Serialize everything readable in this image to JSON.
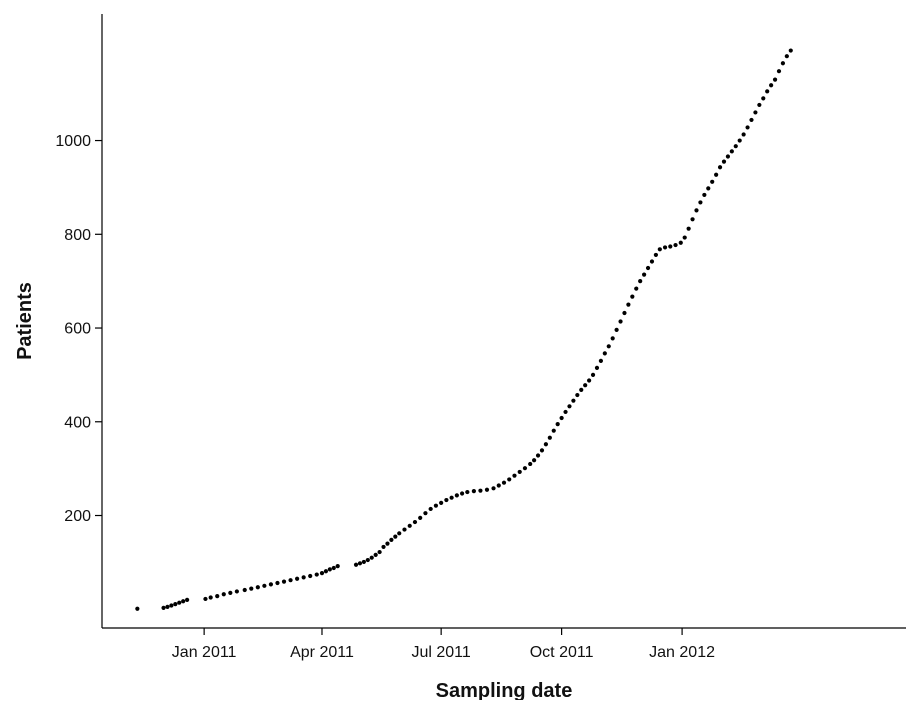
{
  "chart_data": {
    "type": "scatter",
    "xlabel": "Sampling date",
    "ylabel": "Patients",
    "x_is_date": true,
    "xlim": [
      "2010-10-15",
      "2012-06-20"
    ],
    "ylim": [
      -40,
      1270
    ],
    "x_ticks": [
      {
        "date": "2011-01-01",
        "label": "Jan 2011"
      },
      {
        "date": "2011-04-01",
        "label": "Apr 2011"
      },
      {
        "date": "2011-07-01",
        "label": "Jul 2011"
      },
      {
        "date": "2011-10-01",
        "label": "Oct 2011"
      },
      {
        "date": "2012-01-01",
        "label": "Jan 2012"
      }
    ],
    "y_ticks": [
      200,
      400,
      600,
      800,
      1000
    ],
    "grid": false,
    "legend": "none",
    "marker_color": "#000000",
    "series": [
      {
        "points": [
          [
            "2010-11-11",
            1
          ],
          [
            "2010-12-01",
            3
          ],
          [
            "2010-12-04",
            5
          ],
          [
            "2010-12-07",
            8
          ],
          [
            "2010-12-10",
            11
          ],
          [
            "2010-12-13",
            14
          ],
          [
            "2010-12-16",
            17
          ],
          [
            "2010-12-19",
            20
          ],
          [
            "2011-01-02",
            22
          ],
          [
            "2011-01-06",
            25
          ],
          [
            "2011-01-11",
            28
          ],
          [
            "2011-01-16",
            32
          ],
          [
            "2011-01-21",
            35
          ],
          [
            "2011-01-26",
            38
          ],
          [
            "2011-02-01",
            41
          ],
          [
            "2011-02-06",
            44
          ],
          [
            "2011-02-11",
            47
          ],
          [
            "2011-02-16",
            50
          ],
          [
            "2011-02-21",
            53
          ],
          [
            "2011-02-26",
            56
          ],
          [
            "2011-03-03",
            59
          ],
          [
            "2011-03-08",
            62
          ],
          [
            "2011-03-13",
            65
          ],
          [
            "2011-03-18",
            68
          ],
          [
            "2011-03-23",
            71
          ],
          [
            "2011-03-28",
            74
          ],
          [
            "2011-04-01",
            77
          ],
          [
            "2011-04-04",
            81
          ],
          [
            "2011-04-07",
            85
          ],
          [
            "2011-04-10",
            88
          ],
          [
            "2011-04-13",
            92
          ],
          [
            "2011-04-27",
            95
          ],
          [
            "2011-04-30",
            98
          ],
          [
            "2011-05-03",
            101
          ],
          [
            "2011-05-06",
            105
          ],
          [
            "2011-05-09",
            110
          ],
          [
            "2011-05-12",
            116
          ],
          [
            "2011-05-15",
            122
          ],
          [
            "2011-05-18",
            133
          ],
          [
            "2011-05-21",
            140
          ],
          [
            "2011-05-24",
            148
          ],
          [
            "2011-05-27",
            155
          ],
          [
            "2011-05-30",
            162
          ],
          [
            "2011-06-03",
            170
          ],
          [
            "2011-06-07",
            178
          ],
          [
            "2011-06-11",
            186
          ],
          [
            "2011-06-15",
            195
          ],
          [
            "2011-06-19",
            205
          ],
          [
            "2011-06-23",
            214
          ],
          [
            "2011-06-27",
            221
          ],
          [
            "2011-07-01",
            227
          ],
          [
            "2011-07-05",
            233
          ],
          [
            "2011-07-09",
            238
          ],
          [
            "2011-07-13",
            243
          ],
          [
            "2011-07-17",
            247
          ],
          [
            "2011-07-21",
            250
          ],
          [
            "2011-07-26",
            252
          ],
          [
            "2011-07-31",
            253
          ],
          [
            "2011-08-05",
            255
          ],
          [
            "2011-08-10",
            258
          ],
          [
            "2011-08-14",
            264
          ],
          [
            "2011-08-18",
            270
          ],
          [
            "2011-08-22",
            277
          ],
          [
            "2011-08-26",
            285
          ],
          [
            "2011-08-30",
            293
          ],
          [
            "2011-09-03",
            301
          ],
          [
            "2011-09-07",
            310
          ],
          [
            "2011-09-10",
            318
          ],
          [
            "2011-09-13",
            328
          ],
          [
            "2011-09-16",
            339
          ],
          [
            "2011-09-19",
            352
          ],
          [
            "2011-09-22",
            366
          ],
          [
            "2011-09-25",
            381
          ],
          [
            "2011-09-28",
            395
          ],
          [
            "2011-10-01",
            408
          ],
          [
            "2011-10-04",
            421
          ],
          [
            "2011-10-07",
            433
          ],
          [
            "2011-10-10",
            445
          ],
          [
            "2011-10-13",
            457
          ],
          [
            "2011-10-16",
            468
          ],
          [
            "2011-10-19",
            478
          ],
          [
            "2011-10-22",
            488
          ],
          [
            "2011-10-25",
            500
          ],
          [
            "2011-10-28",
            515
          ],
          [
            "2011-10-31",
            530
          ],
          [
            "2011-11-03",
            546
          ],
          [
            "2011-11-06",
            561
          ],
          [
            "2011-11-09",
            578
          ],
          [
            "2011-11-12",
            596
          ],
          [
            "2011-11-15",
            614
          ],
          [
            "2011-11-18",
            632
          ],
          [
            "2011-11-21",
            650
          ],
          [
            "2011-11-24",
            667
          ],
          [
            "2011-11-27",
            684
          ],
          [
            "2011-11-30",
            700
          ],
          [
            "2011-12-03",
            714
          ],
          [
            "2011-12-06",
            728
          ],
          [
            "2011-12-09",
            742
          ],
          [
            "2011-12-12",
            756
          ],
          [
            "2011-12-15",
            768
          ],
          [
            "2011-12-19",
            772
          ],
          [
            "2011-12-23",
            774
          ],
          [
            "2011-12-27",
            777
          ],
          [
            "2011-12-31",
            782
          ],
          [
            "2012-01-03",
            793
          ],
          [
            "2012-01-06",
            812
          ],
          [
            "2012-01-09",
            832
          ],
          [
            "2012-01-12",
            851
          ],
          [
            "2012-01-15",
            868
          ],
          [
            "2012-01-18",
            884
          ],
          [
            "2012-01-21",
            898
          ],
          [
            "2012-01-24",
            912
          ],
          [
            "2012-01-27",
            927
          ],
          [
            "2012-01-30",
            943
          ],
          [
            "2012-02-02",
            955
          ],
          [
            "2012-02-05",
            966
          ],
          [
            "2012-02-08",
            977
          ],
          [
            "2012-02-11",
            988
          ],
          [
            "2012-02-14",
            1000
          ],
          [
            "2012-02-17",
            1013
          ],
          [
            "2012-02-20",
            1028
          ],
          [
            "2012-02-23",
            1044
          ],
          [
            "2012-02-26",
            1060
          ],
          [
            "2012-02-29",
            1076
          ],
          [
            "2012-03-03",
            1090
          ],
          [
            "2012-03-06",
            1105
          ],
          [
            "2012-03-09",
            1118
          ],
          [
            "2012-03-12",
            1130
          ],
          [
            "2012-03-15",
            1148
          ],
          [
            "2012-03-18",
            1165
          ],
          [
            "2012-03-21",
            1180
          ],
          [
            "2012-03-24",
            1192
          ]
        ]
      }
    ]
  }
}
